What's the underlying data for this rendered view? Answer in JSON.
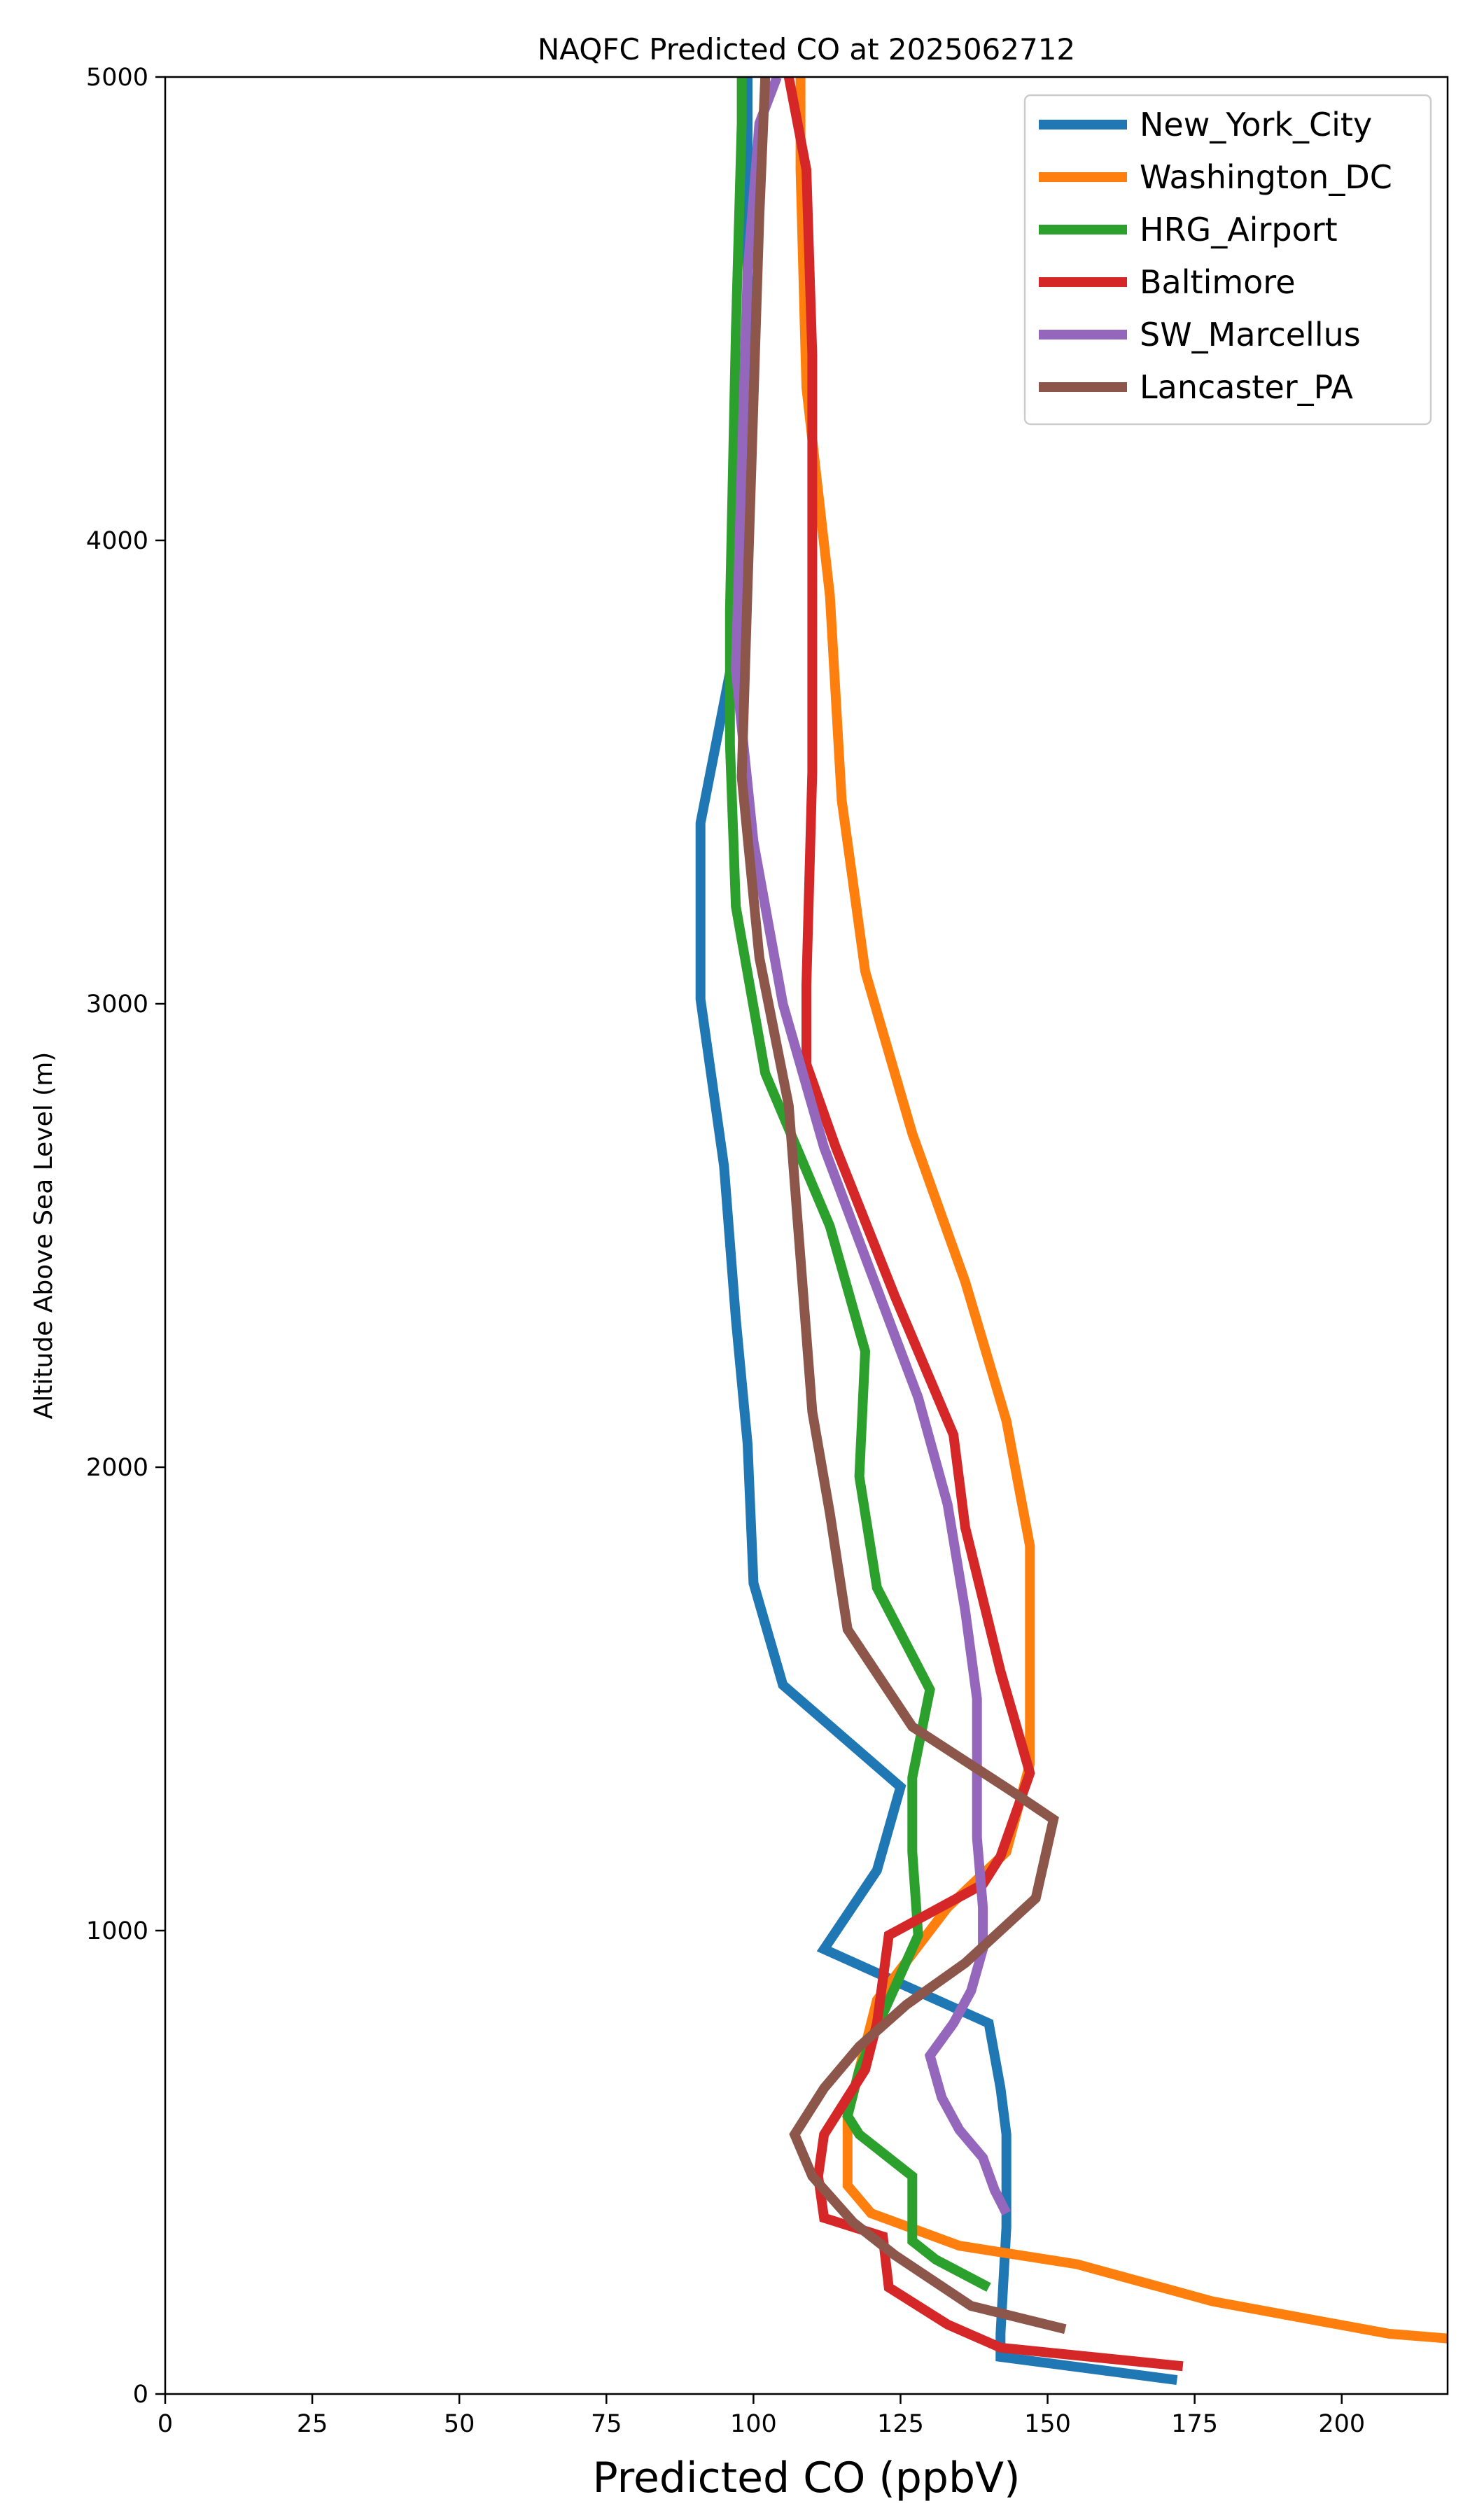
{
  "chart_data": {
    "type": "line",
    "title": "NAQFC Predicted CO at 2025062712",
    "xlabel": "Predicted CO (ppbV)",
    "ylabel": "Altitude Above Sea Level (m)",
    "xlim": [
      0,
      218
    ],
    "ylim": [
      0,
      5000
    ],
    "xticks": [
      0,
      25,
      50,
      75,
      100,
      125,
      150,
      175,
      200
    ],
    "yticks": [
      0,
      1000,
      2000,
      3000,
      4000,
      5000
    ],
    "grid": false,
    "legend_position": "top-right",
    "series": [
      {
        "name": "New_York_City",
        "color": "#1f77b4",
        "points": [
          [
            172,
            30
          ],
          [
            142,
            80
          ],
          [
            142,
            130
          ],
          [
            143,
            360
          ],
          [
            143,
            560
          ],
          [
            142,
            660
          ],
          [
            140,
            800
          ],
          [
            112,
            960
          ],
          [
            121,
            1130
          ],
          [
            125,
            1310
          ],
          [
            105,
            1530
          ],
          [
            100,
            1750
          ],
          [
            99,
            2050
          ],
          [
            97,
            2320
          ],
          [
            95,
            2650
          ],
          [
            91,
            3010
          ],
          [
            91,
            3390
          ],
          [
            97,
            3780
          ],
          [
            99,
            4100
          ],
          [
            99,
            4700
          ],
          [
            99,
            5000
          ]
        ]
      },
      {
        "name": "Washington_DC",
        "color": "#ff7f0e",
        "points": [
          [
            218,
            120
          ],
          [
            208,
            130
          ],
          [
            178,
            200
          ],
          [
            155,
            280
          ],
          [
            135,
            320
          ],
          [
            120,
            390
          ],
          [
            116,
            450
          ],
          [
            116,
            600
          ],
          [
            118,
            700
          ],
          [
            121,
            850
          ],
          [
            127,
            950
          ],
          [
            133,
            1050
          ],
          [
            143,
            1170
          ],
          [
            147,
            1360
          ],
          [
            147,
            1630
          ],
          [
            147,
            1830
          ],
          [
            143,
            2100
          ],
          [
            136,
            2400
          ],
          [
            127,
            2720
          ],
          [
            119,
            3070
          ],
          [
            115,
            3440
          ],
          [
            113,
            3880
          ],
          [
            109,
            4330
          ],
          [
            108,
            4800
          ],
          [
            108,
            5000
          ]
        ]
      },
      {
        "name": "HRG_Airport",
        "color": "#2ca02c",
        "points": [
          [
            140,
            230
          ],
          [
            131,
            290
          ],
          [
            127,
            330
          ],
          [
            127,
            470
          ],
          [
            118,
            560
          ],
          [
            116,
            600
          ],
          [
            118,
            700
          ],
          [
            122,
            820
          ],
          [
            128,
            990
          ],
          [
            127,
            1170
          ],
          [
            127,
            1330
          ],
          [
            130,
            1520
          ],
          [
            121,
            1740
          ],
          [
            118,
            1980
          ],
          [
            119,
            2250
          ],
          [
            113,
            2520
          ],
          [
            102,
            2850
          ],
          [
            97,
            3210
          ],
          [
            96,
            3560
          ],
          [
            96,
            3850
          ],
          [
            97,
            4450
          ],
          [
            98,
            4900
          ],
          [
            98,
            5000
          ]
        ]
      },
      {
        "name": "Baltimore",
        "color": "#d62728",
        "points": [
          [
            173,
            60
          ],
          [
            142,
            100
          ],
          [
            133,
            150
          ],
          [
            123,
            230
          ],
          [
            122,
            340
          ],
          [
            112,
            380
          ],
          [
            111,
            470
          ],
          [
            112,
            560
          ],
          [
            116,
            640
          ],
          [
            119,
            700
          ],
          [
            121,
            800
          ],
          [
            123,
            990
          ],
          [
            139,
            1100
          ],
          [
            142,
            1160
          ],
          [
            147,
            1340
          ],
          [
            142,
            1560
          ],
          [
            136,
            1870
          ],
          [
            134,
            2070
          ],
          [
            124,
            2370
          ],
          [
            114,
            2690
          ],
          [
            109,
            2870
          ],
          [
            109,
            3040
          ],
          [
            110,
            3500
          ],
          [
            110,
            3900
          ],
          [
            110,
            4400
          ],
          [
            109,
            4800
          ],
          [
            106,
            5000
          ]
        ]
      },
      {
        "name": "SW_Marcellus",
        "color": "#9467bd",
        "points": [
          [
            143,
            390
          ],
          [
            141,
            440
          ],
          [
            139,
            510
          ],
          [
            135,
            570
          ],
          [
            132,
            640
          ],
          [
            130,
            730
          ],
          [
            134,
            800
          ],
          [
            137,
            870
          ],
          [
            139,
            960
          ],
          [
            139,
            1050
          ],
          [
            138,
            1200
          ],
          [
            138,
            1500
          ],
          [
            136,
            1690
          ],
          [
            133,
            1920
          ],
          [
            128,
            2150
          ],
          [
            120,
            2420
          ],
          [
            112,
            2690
          ],
          [
            105,
            3000
          ],
          [
            100,
            3350
          ],
          [
            97,
            3720
          ],
          [
            98,
            4160
          ],
          [
            99,
            4580
          ],
          [
            101,
            4900
          ],
          [
            104,
            5000
          ]
        ]
      },
      {
        "name": "Lancaster_PA",
        "color": "#8c564b",
        "points": [
          [
            153,
            140
          ],
          [
            137,
            190
          ],
          [
            124,
            300
          ],
          [
            117,
            370
          ],
          [
            110,
            470
          ],
          [
            107,
            560
          ],
          [
            112,
            660
          ],
          [
            118,
            750
          ],
          [
            126,
            840
          ],
          [
            136,
            930
          ],
          [
            148,
            1070
          ],
          [
            151,
            1240
          ],
          [
            144,
            1300
          ],
          [
            127,
            1440
          ],
          [
            116,
            1650
          ],
          [
            113,
            1900
          ],
          [
            110,
            2120
          ],
          [
            108,
            2450
          ],
          [
            106,
            2780
          ],
          [
            101,
            3100
          ],
          [
            98,
            3490
          ],
          [
            99,
            3900
          ],
          [
            100,
            4300
          ],
          [
            101,
            4700
          ],
          [
            102,
            5000
          ]
        ]
      }
    ]
  }
}
